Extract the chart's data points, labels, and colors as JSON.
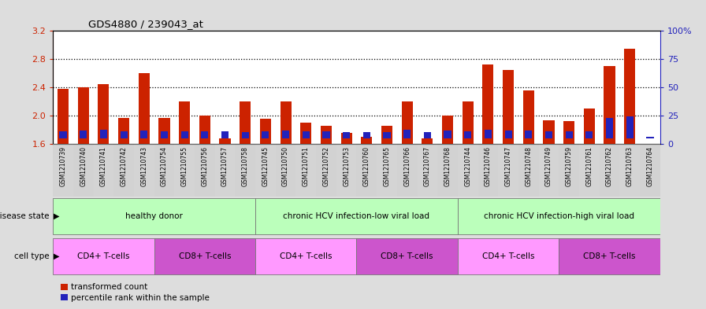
{
  "title": "GDS4880 / 239043_at",
  "samples": [
    "GSM1210739",
    "GSM1210740",
    "GSM1210741",
    "GSM1210742",
    "GSM1210743",
    "GSM1210754",
    "GSM1210755",
    "GSM1210756",
    "GSM1210757",
    "GSM1210758",
    "GSM1210745",
    "GSM1210750",
    "GSM1210751",
    "GSM1210752",
    "GSM1210753",
    "GSM1210760",
    "GSM1210765",
    "GSM1210766",
    "GSM1210767",
    "GSM1210768",
    "GSM1210744",
    "GSM1210746",
    "GSM1210747",
    "GSM1210748",
    "GSM1210749",
    "GSM1210759",
    "GSM1210761",
    "GSM1210762",
    "GSM1210763",
    "GSM1210764"
  ],
  "transformed_count": [
    2.38,
    2.4,
    2.44,
    1.97,
    2.6,
    1.97,
    2.2,
    2.0,
    1.67,
    2.2,
    1.95,
    2.2,
    1.9,
    1.85,
    1.75,
    1.7,
    1.85,
    2.2,
    1.67,
    2.0,
    2.2,
    2.72,
    2.65,
    2.36,
    1.93,
    1.92,
    2.1,
    2.7,
    2.95,
    1.6
  ],
  "percentile_rank": [
    8,
    9,
    10,
    8,
    9,
    8,
    8,
    8,
    8,
    7,
    8,
    9,
    8,
    8,
    7,
    7,
    7,
    10,
    7,
    9,
    8,
    10,
    9,
    9,
    8,
    8,
    8,
    23,
    24,
    2
  ],
  "ylim_left": [
    1.6,
    3.2
  ],
  "ylim_right": [
    0,
    100
  ],
  "yticks_left": [
    1.6,
    2.0,
    2.4,
    2.8,
    3.2
  ],
  "yticks_right": [
    0,
    25,
    50,
    75,
    100
  ],
  "ytick_labels_right": [
    "0",
    "25",
    "50",
    "75",
    "100%"
  ],
  "bar_color_red": "#cc2200",
  "bar_color_blue": "#2222bb",
  "bar_width": 0.55,
  "disease_state_groups": [
    {
      "label": "healthy donor",
      "start": 0,
      "end": 9,
      "color": "#bbffbb"
    },
    {
      "label": "chronic HCV infection-low viral load",
      "start": 10,
      "end": 19,
      "color": "#bbffbb"
    },
    {
      "label": "chronic HCV infection-high viral load",
      "start": 20,
      "end": 29,
      "color": "#bbffbb"
    }
  ],
  "cell_type_groups": [
    {
      "label": "CD4+ T-cells",
      "start": 0,
      "end": 4,
      "color": "#ff99ff"
    },
    {
      "label": "CD8+ T-cells",
      "start": 5,
      "end": 9,
      "color": "#cc55cc"
    },
    {
      "label": "CD4+ T-cells",
      "start": 10,
      "end": 14,
      "color": "#ff99ff"
    },
    {
      "label": "CD8+ T-cells",
      "start": 15,
      "end": 19,
      "color": "#cc55cc"
    },
    {
      "label": "CD4+ T-cells",
      "start": 20,
      "end": 24,
      "color": "#ff99ff"
    },
    {
      "label": "CD8+ T-cells",
      "start": 25,
      "end": 29,
      "color": "#cc55cc"
    }
  ],
  "disease_state_label": "disease state",
  "cell_type_label": "cell type",
  "legend_transformed": "transformed count",
  "legend_percentile": "percentile rank within the sample",
  "background_color": "#dddddd",
  "plot_bg_color": "#ffffff",
  "tick_area_color": "#cccccc",
  "left_axis_color": "#cc2200",
  "right_axis_color": "#2222bb"
}
